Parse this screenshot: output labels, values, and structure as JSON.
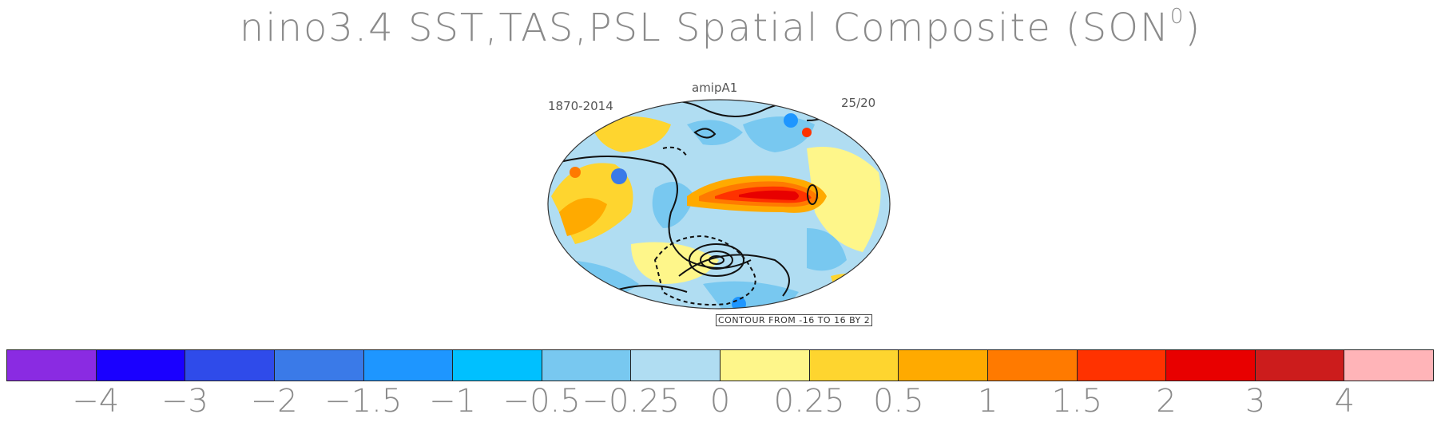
{
  "title": "nino3.4 SST,TAS,PSL Spatial Composite (SON",
  "title_superscript": "0",
  "title_close": ")",
  "panel": {
    "name": "amipA1",
    "period": "1870-2014",
    "ratio": "25/20",
    "contour_note": "CONTOUR FROM -16 TO 16 BY 2"
  },
  "colorbar": {
    "colors": [
      "#8a2be2",
      "#1a00ff",
      "#2f4bea",
      "#3a7ae8",
      "#1e96ff",
      "#00c0ff",
      "#78c8f0",
      "#b0ddf2",
      "#fef68a",
      "#fed52f",
      "#ffaa00",
      "#ff7a00",
      "#ff3200",
      "#e80000",
      "#cc1c1c",
      "#ffb4b8"
    ],
    "ticks": [
      "−4",
      "−3",
      "−2",
      "−1.5",
      "−1",
      "−0.5",
      "−0.25",
      "0",
      "0.25",
      "0.5",
      "1",
      "1.5",
      "2",
      "3",
      "4"
    ]
  }
}
